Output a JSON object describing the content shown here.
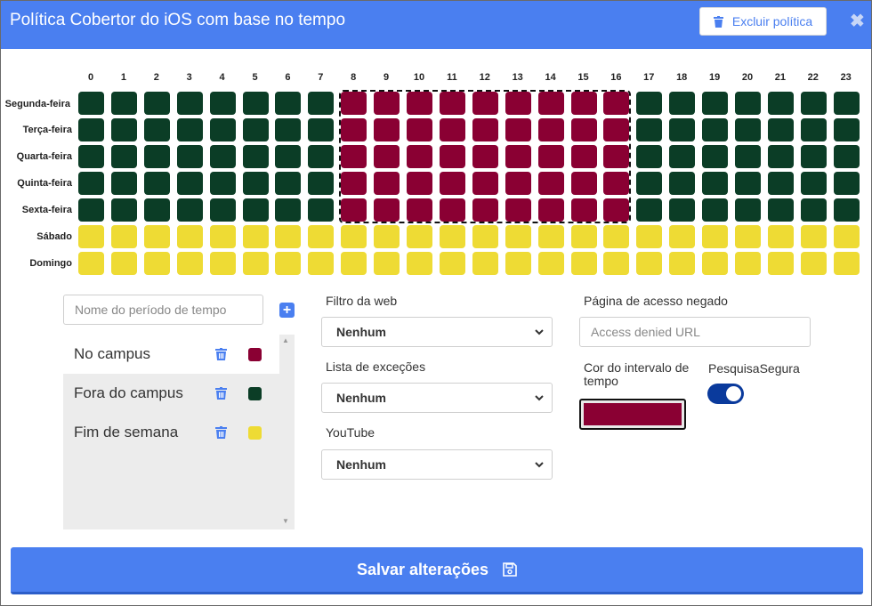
{
  "header": {
    "title": "Política Cobertor do iOS com base no tempo",
    "delete_label": "Excluir política",
    "close_glyph": "✖"
  },
  "schedule": {
    "hours": [
      "0",
      "1",
      "2",
      "3",
      "4",
      "5",
      "6",
      "7",
      "8",
      "9",
      "10",
      "11",
      "12",
      "13",
      "14",
      "15",
      "16",
      "17",
      "18",
      "19",
      "20",
      "21",
      "22",
      "23"
    ],
    "days": [
      "Segunda-feira",
      "Terça-feira",
      "Quarta-feira",
      "Quinta-feira",
      "Sexta-feira",
      "Sábado",
      "Domingo"
    ],
    "grid": [
      [
        1,
        1,
        1,
        1,
        1,
        1,
        1,
        1,
        0,
        0,
        0,
        0,
        0,
        0,
        0,
        0,
        0,
        1,
        1,
        1,
        1,
        1,
        1,
        1
      ],
      [
        1,
        1,
        1,
        1,
        1,
        1,
        1,
        1,
        0,
        0,
        0,
        0,
        0,
        0,
        0,
        0,
        0,
        1,
        1,
        1,
        1,
        1,
        1,
        1
      ],
      [
        1,
        1,
        1,
        1,
        1,
        1,
        1,
        1,
        0,
        0,
        0,
        0,
        0,
        0,
        0,
        0,
        0,
        1,
        1,
        1,
        1,
        1,
        1,
        1
      ],
      [
        1,
        1,
        1,
        1,
        1,
        1,
        1,
        1,
        0,
        0,
        0,
        0,
        0,
        0,
        0,
        0,
        0,
        1,
        1,
        1,
        1,
        1,
        1,
        1
      ],
      [
        1,
        1,
        1,
        1,
        1,
        1,
        1,
        1,
        0,
        0,
        0,
        0,
        0,
        0,
        0,
        0,
        0,
        1,
        1,
        1,
        1,
        1,
        1,
        1
      ],
      [
        2,
        2,
        2,
        2,
        2,
        2,
        2,
        2,
        2,
        2,
        2,
        2,
        2,
        2,
        2,
        2,
        2,
        2,
        2,
        2,
        2,
        2,
        2,
        2
      ],
      [
        2,
        2,
        2,
        2,
        2,
        2,
        2,
        2,
        2,
        2,
        2,
        2,
        2,
        2,
        2,
        2,
        2,
        2,
        2,
        2,
        2,
        2,
        2,
        2
      ]
    ],
    "selection": {
      "hour_start": 8,
      "hour_end": 16,
      "day_start": 0,
      "day_end": 4
    }
  },
  "periods": {
    "name_placeholder": "Nome do período de tempo",
    "add_glyph": "+",
    "items": [
      {
        "label": "No campus",
        "color": "#8a0033"
      },
      {
        "label": "Fora do campus",
        "color": "#0b3d26"
      },
      {
        "label": "Fim de semana",
        "color": "#eedb34"
      }
    ]
  },
  "filters": {
    "web_filter_label": "Filtro da web",
    "web_filter_value": "Nenhum",
    "exceptions_label": "Lista de exceções",
    "exceptions_value": "Nenhum",
    "youtube_label": "YouTube",
    "youtube_value": "Nenhum"
  },
  "access_denied": {
    "label": "Página de acesso negado",
    "placeholder": "Access denied URL"
  },
  "interval_color": {
    "label": "Cor do intervalo de tempo",
    "value": "#8a0033"
  },
  "safe_search": {
    "label": "PesquisaSegura",
    "enabled": true
  },
  "footer": {
    "save_label": "Salvar alterações"
  }
}
